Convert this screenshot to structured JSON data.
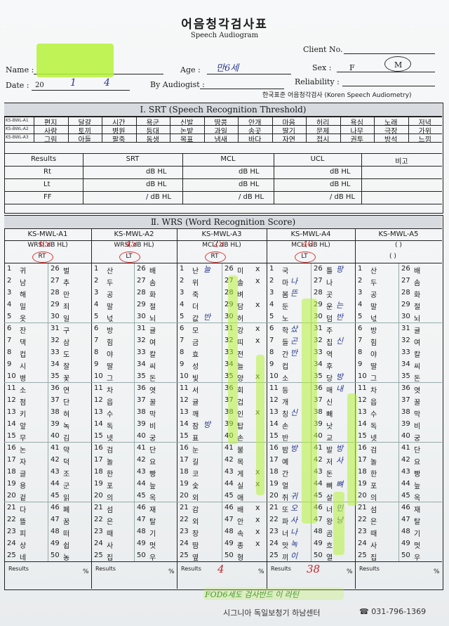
{
  "header": {
    "title_ko": "어음청각검사표",
    "title_en": "Speech Audiogram",
    "client_no": "Client No.",
    "name": "Name :",
    "age": "Age :",
    "age_value": "만6세",
    "sex": "Sex :",
    "sex_f": "F",
    "sex_m": "M",
    "date": "Date :",
    "date_year": "20",
    "date_month": "1",
    "date_day": "4",
    "by_audiologist": "By Audiogist :",
    "reliability": "Reliability :",
    "standard": "한국표준 어음청각검사 (Koren Speech Audiometry)"
  },
  "srt": {
    "title": "Ⅰ. SRT (Speech Recognition Threshold)",
    "codes": [
      "KS-BWL-A1",
      "KS-BWL-A2",
      "KS-BWL-A3"
    ],
    "rows": [
      [
        "편지",
        "달걀",
        "시간",
        "욕군",
        "신발",
        "땅콩",
        "안개",
        "마음",
        "허리",
        "욕심",
        "노래",
        "저녁"
      ],
      [
        "사람",
        "토끼",
        "병원",
        "등대",
        "논밭",
        "과일",
        "송곳",
        "딸기",
        "문제",
        "나무",
        "극장",
        "가위"
      ],
      [
        "그림",
        "아들",
        "팔죽",
        "동생",
        "목표",
        "냄새",
        "바다",
        "자연",
        "접시",
        "권투",
        "방석",
        "느낌"
      ]
    ],
    "table": {
      "headers": [
        "Results",
        "SRT",
        "MCL",
        "UCL",
        "비고"
      ],
      "rows": [
        {
          "label": "Rt",
          "srt": "dB HL",
          "mcl": "dB HL",
          "ucl": "dB HL"
        },
        {
          "label": "Lt",
          "srt": "dB HL",
          "mcl": "dB HL",
          "ucl": "dB HL"
        },
        {
          "label": "FF",
          "srt": "/ dB HL",
          "mcl": "/ dB HL",
          "ucl": "/ dB HL"
        }
      ]
    }
  },
  "wrs": {
    "title": "Ⅱ. WRS (Word Recognition Score)",
    "lists": [
      "KS-MWL-A1",
      "KS-MWL-A2",
      "KS-MWL-A3",
      "KS-MWL-A4",
      "KS-MWL-A5"
    ],
    "sub": [
      "WRS(  dB HL)",
      "WRS(  dB HL)",
      "MCL(  dB HL)",
      "MCL(  dB HL)",
      "(         )"
    ],
    "sub_handwritten": [
      "65",
      "45",
      "25",
      "40",
      ""
    ],
    "ear": [
      "RT",
      "LT",
      "RT",
      "LT",
      "(     )"
    ],
    "a1": {
      "left": [
        "귀",
        "남",
        "해",
        "밀",
        "옷",
        "잔",
        "댁",
        "컵",
        "시",
        "병",
        "소",
        "점",
        "키",
        "앞",
        "무",
        "논",
        "자",
        "글",
        "용",
        "겉",
        "다",
        "뜰",
        "피",
        "상",
        "네"
      ],
      "right": [
        "벌",
        "추",
        "만",
        "죄",
        "일",
        "구",
        "삼",
        "도",
        "잘",
        "꽃",
        "연",
        "단",
        "혀",
        "녹",
        "김",
        "약",
        "덕",
        "조",
        "군",
        "읽",
        "폐",
        "꿈",
        "떠",
        "쉽",
        "농"
      ]
    },
    "a2": {
      "left": [
        "산",
        "두",
        "공",
        "말",
        "넋",
        "방",
        "힘",
        "야",
        "딸",
        "그",
        "차",
        "읍",
        "수",
        "독",
        "넷",
        "검",
        "놀",
        "한",
        "포",
        "의",
        "섬",
        "은",
        "때",
        "사",
        "집"
      ],
      "right": [
        "배",
        "솜",
        "화",
        "절",
        "뇌",
        "귤",
        "여",
        "칼",
        "씨",
        "돈",
        "엿",
        "꿀",
        "막",
        "비",
        "궁",
        "단",
        "요",
        "빵",
        "늪",
        "옥",
        "재",
        "탈",
        "기",
        "멋",
        "우"
      ]
    },
    "a3": {
      "left": [
        "난",
        "위",
        "죽",
        "더",
        "값",
        "모",
        "금",
        "효",
        "성",
        "빛",
        "서",
        "귤",
        "깨",
        "잠",
        "표",
        "눈",
        "길",
        "코",
        "숯",
        "외",
        "감",
        "외",
        "장",
        "땀",
        "옆"
      ],
      "right": [
        "미",
        "솔",
        "벼",
        "담",
        "허",
        "강",
        "띠",
        "전",
        "늘",
        "양",
        "회",
        "겁",
        "인",
        "탑",
        "손",
        "불",
        "목",
        "게",
        "실",
        "애",
        "배",
        "안",
        "속",
        "종",
        "형"
      ],
      "marks": [
        "x",
        "x",
        "",
        "x",
        "",
        "x",
        "x",
        "",
        "",
        "x",
        "",
        "",
        "x",
        "",
        "",
        "",
        "",
        "x",
        "x",
        "",
        "x",
        "x",
        "x",
        "x",
        ""
      ],
      "hand": [
        "늘",
        "",
        "",
        "",
        "반",
        "",
        "",
        "",
        "",
        "",
        "",
        "",
        "",
        "방",
        "",
        "",
        "",
        "",
        "",
        "",
        "",
        "",
        "",
        "",
        ""
      ]
    },
    "a4": {
      "left": [
        "국",
        "마",
        "봄",
        "둔",
        "노",
        "학",
        "들",
        "간",
        "컵",
        "소",
        "등",
        "개",
        "칭",
        "손",
        "반",
        "밤",
        "예",
        "간",
        "얼",
        "쥐",
        "또",
        "파",
        "너",
        "맛",
        "끼"
      ],
      "right": [
        "틀",
        "나",
        "곳",
        "운",
        "덤",
        "주",
        "칩",
        "역",
        "후",
        "당",
        "매",
        "신",
        "빼",
        "낫",
        "교",
        "발",
        "저",
        "돈",
        "뼈",
        "살",
        "너",
        "왕",
        "곰",
        "흐",
        "열"
      ],
      "lhand": [
        "",
        "나",
        "뜬",
        "",
        "",
        "샀",
        "곤",
        "반",
        "",
        "",
        "",
        "",
        "신",
        "",
        "",
        "방",
        "",
        "",
        "",
        "귀",
        "오",
        "사",
        "나",
        "녹",
        "이"
      ],
      "rhand": [
        "팡",
        "",
        "",
        "는",
        "반",
        "",
        "신",
        "",
        "",
        "방",
        "내",
        "",
        "",
        "",
        "",
        "방",
        "사",
        "",
        "뼈",
        "",
        "민",
        "낭",
        "",
        "",
        ""
      ]
    },
    "a5": {
      "left": [
        "산",
        "두",
        "공",
        "말",
        "넋",
        "방",
        "힘",
        "야",
        "딸",
        "그",
        "차",
        "읍",
        "수",
        "독",
        "넷",
        "검",
        "놀",
        "한",
        "포",
        "의",
        "섬",
        "은",
        "때",
        "사",
        "집"
      ],
      "right": [
        "배",
        "솜",
        "화",
        "절",
        "뇌",
        "귤",
        "여",
        "칼",
        "씨",
        "돈",
        "엿",
        "꿀",
        "막",
        "비",
        "궁",
        "단",
        "요",
        "빵",
        "늪",
        "옥",
        "재",
        "탈",
        "기",
        "멋",
        "우"
      ]
    },
    "results": [
      "Results",
      "Results",
      "Results",
      "Results",
      "Results"
    ],
    "pct": "%",
    "scores": [
      "",
      "",
      "4",
      "38",
      ""
    ],
    "note": "FOD6세도 검사반드 이 라틴"
  },
  "footer": {
    "text": "시그니아 독일보청기 하남센터",
    "phone": "☎ 031-796-1369"
  }
}
